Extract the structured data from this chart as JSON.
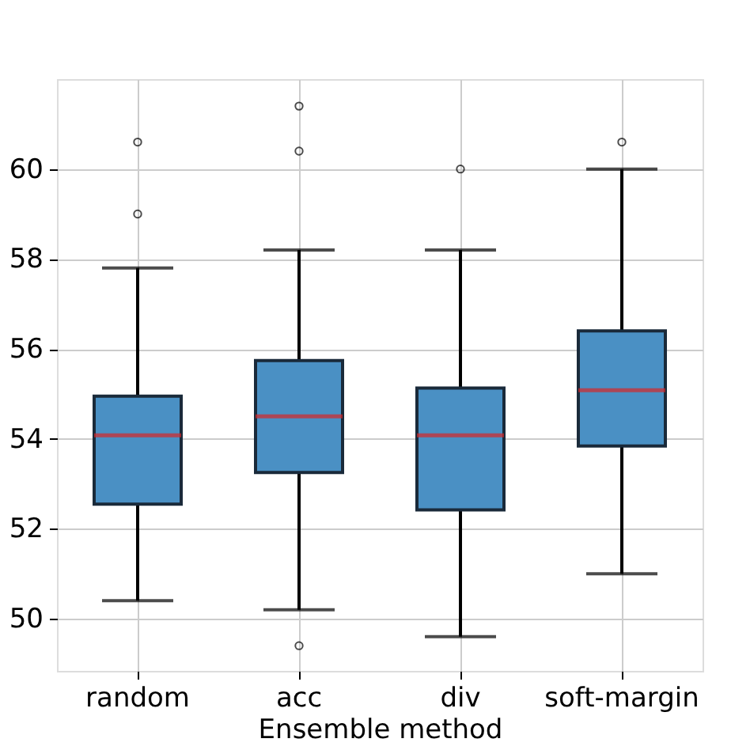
{
  "chart_data": {
    "type": "box",
    "xlabel": "Ensemble method",
    "categories": [
      "random",
      "acc",
      "div",
      "soft-margin"
    ],
    "series": [
      {
        "color": "#4a90c4",
        "boxes": [
          {
            "low": 50.4,
            "q1": 52.55,
            "median": 54.08,
            "q3": 54.95,
            "high": 57.8,
            "outliers": [
              60.6,
              59.0
            ]
          },
          {
            "low": 50.2,
            "q1": 53.25,
            "median": 54.5,
            "q3": 55.74,
            "high": 58.2,
            "outliers": [
              61.4,
              60.4,
              49.4
            ]
          },
          {
            "low": 49.6,
            "q1": 52.42,
            "median": 54.08,
            "q3": 55.13,
            "high": 58.2,
            "outliers": [
              60.0
            ]
          },
          {
            "low": 51.0,
            "q1": 53.84,
            "median": 55.08,
            "q3": 56.4,
            "high": 60.0,
            "outliers": [
              60.6
            ]
          }
        ]
      }
    ],
    "ylim": [
      48.84,
      62.0
    ],
    "yticks": [
      50,
      52,
      54,
      56,
      58,
      60
    ],
    "grid": true
  }
}
